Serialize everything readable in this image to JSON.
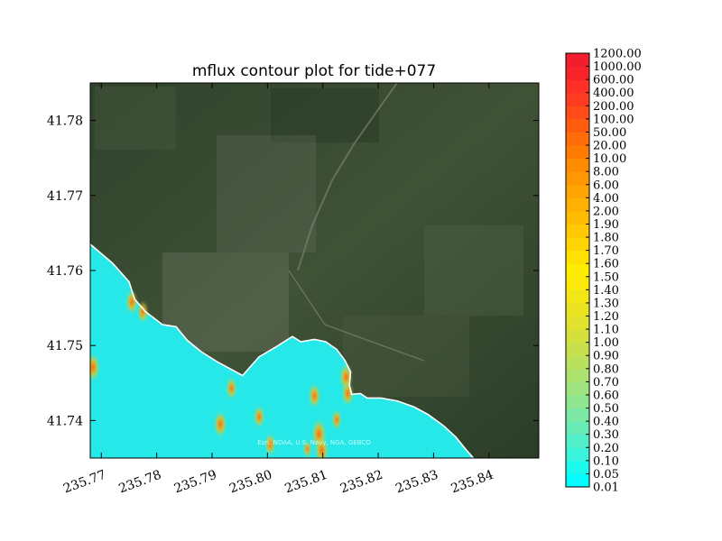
{
  "chart_data": {
    "type": "heatmap",
    "title": "mflux contour plot for tide+077",
    "xlabel": "",
    "ylabel": "",
    "xlim": [
      235.768,
      235.849
    ],
    "ylim": [
      41.735,
      41.785
    ],
    "x_ticks": [
      "235.77",
      "235.78",
      "235.79",
      "235.80",
      "235.81",
      "235.82",
      "235.83",
      "235.84"
    ],
    "x_tick_values": [
      235.77,
      235.78,
      235.79,
      235.8,
      235.81,
      235.82,
      235.83,
      235.84
    ],
    "y_ticks": [
      "41.74",
      "41.75",
      "41.76",
      "41.77",
      "41.78"
    ],
    "y_tick_values": [
      41.74,
      41.75,
      41.76,
      41.77,
      41.78
    ],
    "background": "satellite imagery",
    "attribution": "Esri, NOAA, U.S. Navy, NGA, GEBCO",
    "colorbar": {
      "levels": [
        "0.01",
        "0.05",
        "0.10",
        "0.20",
        "0.30",
        "0.40",
        "0.50",
        "0.60",
        "0.70",
        "0.80",
        "0.90",
        "1.00",
        "1.10",
        "1.20",
        "1.30",
        "1.40",
        "1.50",
        "1.60",
        "1.70",
        "1.80",
        "1.90",
        "2.00",
        "4.00",
        "6.00",
        "8.00",
        "10.00",
        "20.00",
        "50.00",
        "100.00",
        "200.00",
        "400.00",
        "600.00",
        "1000.00",
        "1200.00"
      ],
      "colors": [
        "#00ffff",
        "#1cfaee",
        "#3af5dc",
        "#52f0c8",
        "#68ebb6",
        "#7de8a4",
        "#8ee592",
        "#9ee380",
        "#ace26e",
        "#bae15c",
        "#c7e04c",
        "#d4e03c",
        "#e0e22e",
        "#eae322",
        "#f3e616",
        "#fbea0a",
        "#ffed00",
        "#ffe000",
        "#ffd400",
        "#ffc800",
        "#ffbc00",
        "#ffb000",
        "#ffa400",
        "#ff9800",
        "#ff8c00",
        "#ff7c00",
        "#ff6c08",
        "#ff5c10",
        "#ff4c18",
        "#ff3c20",
        "#ff3026",
        "#f8242a",
        "#f01e2e"
      ]
    },
    "series": [
      {
        "type": "shoreline",
        "points": [
          [
            235.768,
            41.7635
          ],
          [
            235.772,
            41.761
          ],
          [
            235.775,
            41.7585
          ],
          [
            235.776,
            41.7562
          ],
          [
            235.778,
            41.7545
          ],
          [
            235.781,
            41.7528
          ],
          [
            235.7835,
            41.7525
          ],
          [
            235.7855,
            41.7507
          ],
          [
            235.788,
            41.7492
          ],
          [
            235.791,
            41.7478
          ],
          [
            235.7935,
            41.7468
          ],
          [
            235.7955,
            41.746
          ],
          [
            235.7985,
            41.7485
          ],
          [
            235.8015,
            41.7498
          ],
          [
            235.8045,
            41.7512
          ],
          [
            235.806,
            41.7505
          ],
          [
            235.8085,
            41.7508
          ],
          [
            235.8105,
            41.7505
          ],
          [
            235.8125,
            41.7495
          ],
          [
            235.814,
            41.748
          ],
          [
            235.815,
            41.7465
          ],
          [
            235.8148,
            41.7447
          ],
          [
            235.8152,
            41.7435
          ],
          [
            235.8168,
            41.7436
          ],
          [
            235.818,
            41.743
          ],
          [
            235.8205,
            41.743
          ],
          [
            235.8235,
            41.7426
          ],
          [
            235.8265,
            41.7418
          ],
          [
            235.829,
            41.7408
          ],
          [
            235.8318,
            41.7393
          ],
          [
            235.834,
            41.7378
          ],
          [
            235.836,
            41.736
          ],
          [
            235.8372,
            41.735
          ]
        ]
      },
      {
        "type": "high_flux_zones",
        "points": [
          [
            235.7685,
            41.7471,
            600
          ],
          [
            235.7755,
            41.7558,
            200
          ],
          [
            235.7775,
            41.7545,
            100
          ],
          [
            235.7915,
            41.7395,
            400
          ],
          [
            235.7935,
            41.7443,
            100
          ],
          [
            235.7985,
            41.7405,
            100
          ],
          [
            235.8093,
            41.7382,
            1200
          ],
          [
            235.8098,
            41.736,
            600
          ],
          [
            235.8072,
            41.7362,
            20
          ],
          [
            235.8085,
            41.7433,
            200
          ],
          [
            235.8142,
            41.7458,
            400
          ],
          [
            235.8145,
            41.7436,
            200
          ],
          [
            235.8125,
            41.7401,
            50
          ],
          [
            235.8005,
            41.7368,
            100
          ]
        ]
      }
    ]
  }
}
